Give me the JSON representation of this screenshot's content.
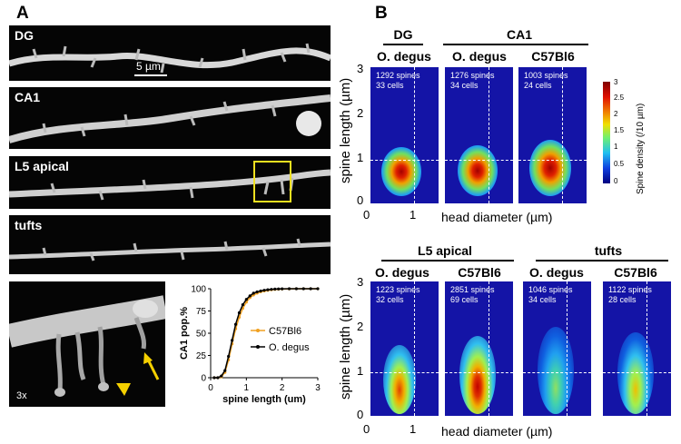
{
  "panel_a": {
    "letter": "A",
    "rows": [
      {
        "label": "DG"
      },
      {
        "label": "CA1"
      },
      {
        "label": "L5 apical"
      },
      {
        "label": "tufts"
      }
    ],
    "scale_bar_label": "5 µm",
    "zoom_label": "3x",
    "colors": {
      "highlight_box": "#f0e020",
      "arrow": "#f5d000"
    }
  },
  "panel_b": {
    "letter": "B",
    "groups": {
      "dg": "DG",
      "ca1": "CA1",
      "l5": "L5 apical",
      "tufts": "tufts"
    },
    "species": {
      "degus": "O. degus",
      "c57": "C57Bl6"
    },
    "ylabel": "spine length (µm)",
    "xlabel": "head diameter (µm)",
    "colorbar_label": "Spine density (/10 µm)",
    "colorbar_ticks": [
      "3",
      "2.5",
      "2",
      "1.5",
      "1",
      "0.5",
      "0"
    ],
    "heatmaps": [
      {
        "spines": "1292 spines",
        "cells": "33 cells"
      },
      {
        "spines": "1276 spines",
        "cells": "34 cells"
      },
      {
        "spines": "1003 spines",
        "cells": "24 cells"
      },
      {
        "spines": "1223 spines",
        "cells": "32 cells"
      },
      {
        "spines": "2851 spines",
        "cells": "69 cells"
      },
      {
        "spines": "1046 spines",
        "cells": "34 cells"
      },
      {
        "spines": "1122 spines",
        "cells": "28 cells"
      }
    ],
    "yticks": [
      "3",
      "2",
      "1",
      "0"
    ],
    "xticks": [
      "0",
      "1"
    ]
  },
  "chart_data": {
    "type": "line",
    "xlabel": "spine length (um)",
    "ylabel": "CA1 pop.%",
    "xlim": [
      0,
      3
    ],
    "ylim": [
      0,
      100
    ],
    "xticks": [
      "0",
      "1",
      "2",
      "3"
    ],
    "yticks": [
      "100",
      "75",
      "50",
      "25",
      "0"
    ],
    "legend_position": "right",
    "series": [
      {
        "name": "C57Bl6",
        "color": "#f0a020",
        "x": [
          0.1,
          0.2,
          0.3,
          0.4,
          0.5,
          0.6,
          0.7,
          0.8,
          0.9,
          1.0,
          1.1,
          1.2,
          1.3,
          1.4,
          1.5,
          1.6,
          1.7,
          1.8,
          1.9,
          2.0,
          2.2,
          2.4,
          2.6,
          2.8,
          3.0
        ],
        "y": [
          0,
          0,
          1,
          6,
          20,
          38,
          55,
          68,
          78,
          85,
          90,
          93,
          95,
          96.5,
          97.5,
          98.2,
          98.8,
          99.2,
          99.5,
          99.7,
          99.9,
          100,
          100,
          100,
          100
        ]
      },
      {
        "name": "O. degus",
        "color": "#000000",
        "x": [
          0.1,
          0.2,
          0.3,
          0.4,
          0.5,
          0.6,
          0.7,
          0.8,
          0.9,
          1.0,
          1.1,
          1.2,
          1.3,
          1.4,
          1.5,
          1.6,
          1.7,
          1.8,
          1.9,
          2.0,
          2.2,
          2.4,
          2.6,
          2.8,
          3.0
        ],
        "y": [
          0,
          0,
          2,
          8,
          24,
          42,
          60,
          73,
          82,
          88,
          92,
          95,
          96.5,
          97.5,
          98.3,
          98.9,
          99.3,
          99.6,
          99.8,
          99.9,
          100,
          100,
          100,
          100,
          100
        ]
      }
    ]
  }
}
